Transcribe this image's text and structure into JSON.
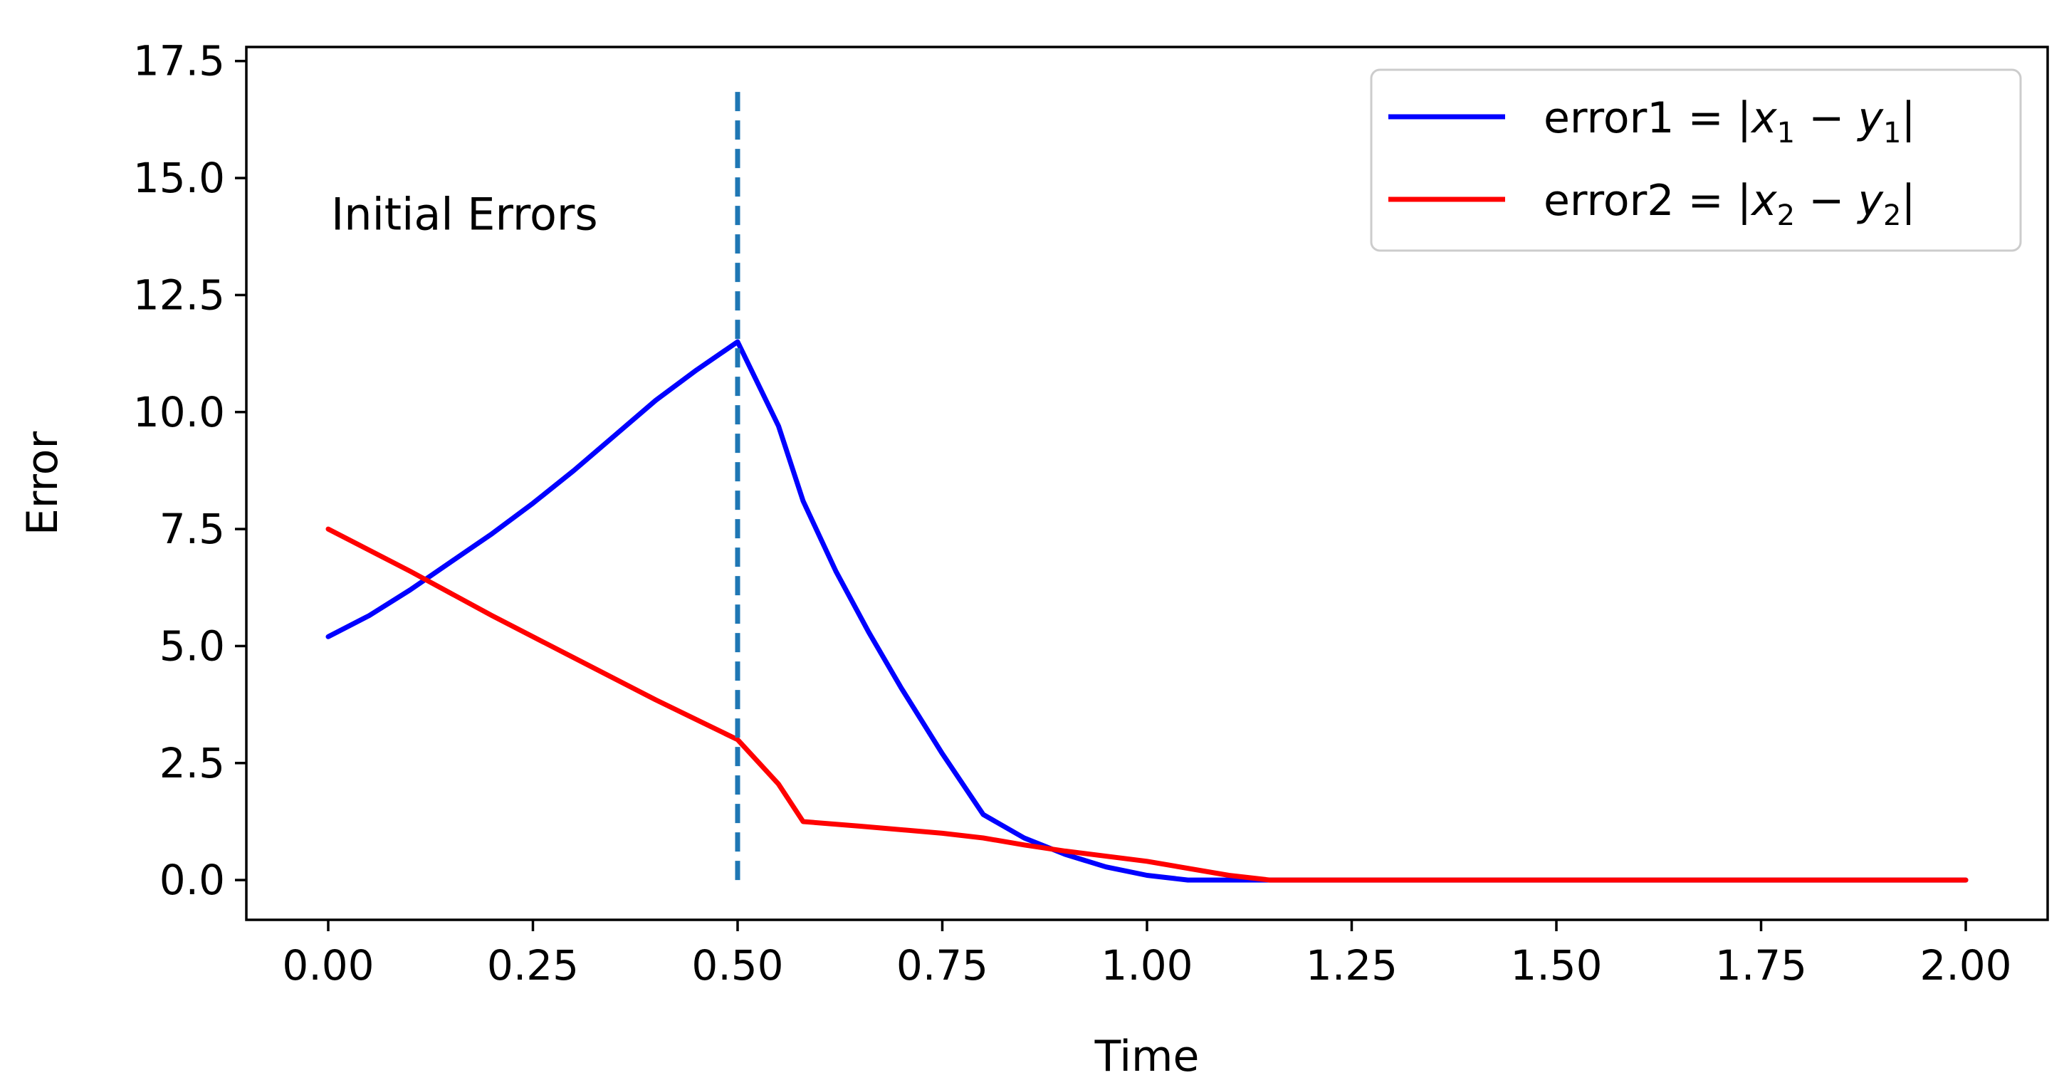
{
  "chart_data": {
    "type": "line",
    "title": "",
    "xlabel": "Time",
    "ylabel": "Error",
    "xlim": [
      -0.1,
      2.1
    ],
    "ylim": [
      -0.85,
      17.8
    ],
    "x_ticks": [
      0.0,
      0.25,
      0.5,
      0.75,
      1.0,
      1.25,
      1.5,
      1.75,
      2.0
    ],
    "x_tick_labels": [
      "0.00",
      "0.25",
      "0.50",
      "0.75",
      "1.00",
      "1.25",
      "1.50",
      "1.75",
      "2.00"
    ],
    "y_ticks": [
      0.0,
      2.5,
      5.0,
      7.5,
      10.0,
      12.5,
      15.0,
      17.5
    ],
    "y_tick_labels": [
      "0.0",
      "2.5",
      "5.0",
      "7.5",
      "10.0",
      "12.5",
      "15.0",
      "17.5"
    ],
    "grid": false,
    "legend_position": "top-right",
    "annotation": {
      "text": "Initial Errors",
      "x": 0.0,
      "y": 14.2
    },
    "vertical_line": {
      "x": 0.5,
      "y_start": 0.0,
      "y_end": 17.0,
      "style": "dashed",
      "color": "#1f77b4"
    },
    "series": [
      {
        "name": "error1 = |x₁ − y₁|",
        "color": "#0000ff",
        "x": [
          0.0,
          0.05,
          0.1,
          0.15,
          0.2,
          0.25,
          0.3,
          0.35,
          0.4,
          0.45,
          0.5,
          0.55,
          0.58,
          0.62,
          0.66,
          0.7,
          0.75,
          0.8,
          0.85,
          0.9,
          0.95,
          1.0,
          1.05,
          1.1,
          1.15,
          1.2,
          1.5,
          1.8,
          2.0
        ],
        "y": [
          5.2,
          5.65,
          6.2,
          6.8,
          7.4,
          8.05,
          8.75,
          9.5,
          10.25,
          10.9,
          11.5,
          9.7,
          8.1,
          6.6,
          5.3,
          4.1,
          2.7,
          1.4,
          0.9,
          0.55,
          0.28,
          0.1,
          0.0,
          0.0,
          0.0,
          0.0,
          0.0,
          0.0,
          0.0
        ]
      },
      {
        "name": "error2 = |x₂ − y₂|",
        "color": "#ff0000",
        "x": [
          0.0,
          0.1,
          0.2,
          0.3,
          0.4,
          0.5,
          0.55,
          0.58,
          0.65,
          0.75,
          0.8,
          0.85,
          0.9,
          1.0,
          1.1,
          1.15,
          1.2,
          1.5,
          1.8,
          2.0
        ],
        "y": [
          7.5,
          6.6,
          5.65,
          4.75,
          3.85,
          3.0,
          2.05,
          1.25,
          1.15,
          1.0,
          0.9,
          0.75,
          0.62,
          0.4,
          0.1,
          0.0,
          0.0,
          0.0,
          0.0,
          0.0
        ]
      }
    ]
  },
  "legend": {
    "entries": [
      {
        "label_prefix": "error1 = |",
        "var1": "x",
        "sub1": "1",
        "minus": " − ",
        "var2": "y",
        "sub2": "1",
        "close": "|"
      },
      {
        "label_prefix": "error2 = |",
        "var1": "x",
        "sub1": "2",
        "minus": " − ",
        "var2": "y",
        "sub2": "2",
        "close": "|"
      }
    ]
  }
}
